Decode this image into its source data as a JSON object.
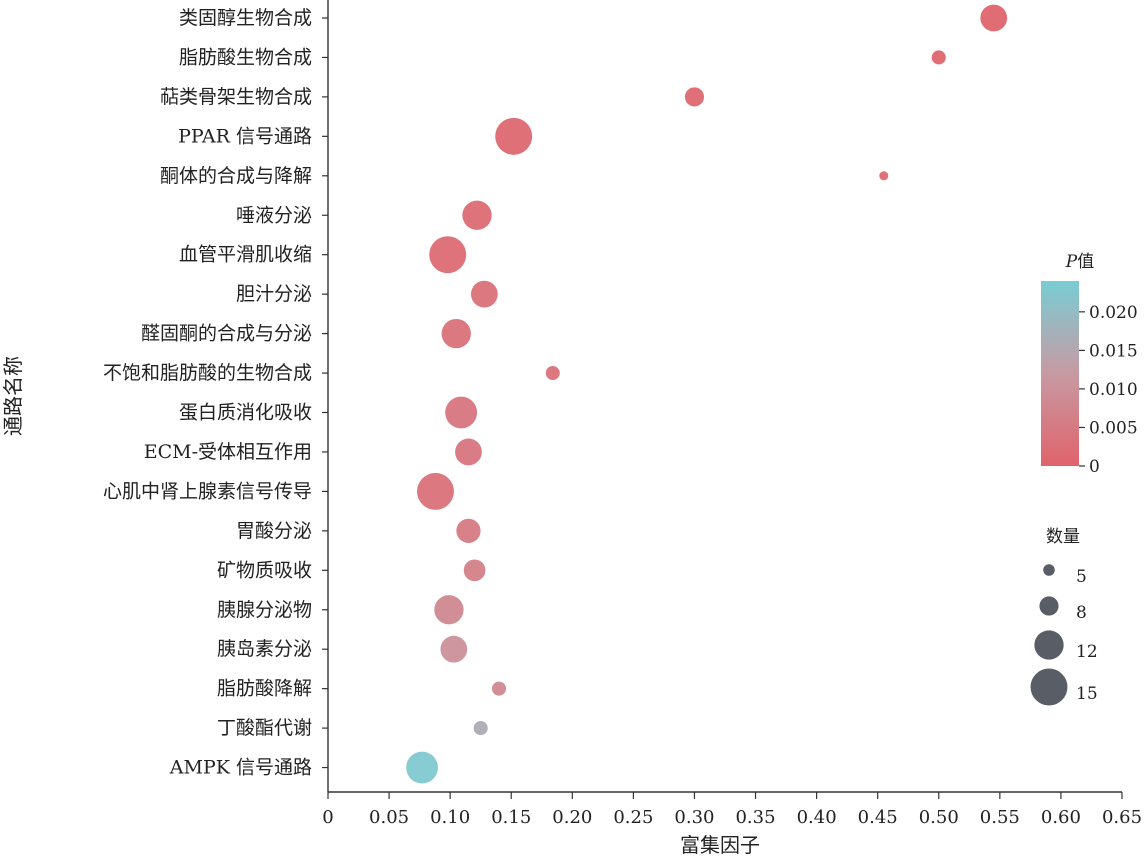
{
  "chart_data": {
    "type": "scatter",
    "xlabel": "富集因子",
    "ylabel": "通路名称",
    "xlim": [
      0,
      0.65
    ],
    "xticks": [
      "0",
      "0.05",
      "0.10",
      "0.15",
      "0.20",
      "0.25",
      "0.30",
      "0.35",
      "0.40",
      "0.45",
      "0.50",
      "0.55",
      "0.60",
      "0.65"
    ],
    "categories": [
      "类固醇生物合成",
      "脂肪酸生物合成",
      "萜类骨架生物合成",
      "PPAR 信号通路",
      "酮体的合成与降解",
      "唾液分泌",
      "血管平滑肌收缩",
      "胆汁分泌",
      "醛固酮的合成与分泌",
      "不饱和脂肪酸的生物合成",
      "蛋白质消化吸收",
      "ECM-受体相互作用",
      "心肌中肾上腺素信号传导",
      "胃酸分泌",
      "矿物质吸收",
      "胰腺分泌物",
      "胰岛素分泌",
      "脂肪酸降解",
      "丁酸酯代谢",
      "AMPK 信号通路"
    ],
    "points": [
      {
        "x": 0.545,
        "count": 11,
        "p": 0.0005
      },
      {
        "x": 0.5,
        "count": 6,
        "p": 0.0005
      },
      {
        "x": 0.3,
        "count": 8,
        "p": 0.001
      },
      {
        "x": 0.152,
        "count": 15,
        "p": 0.001
      },
      {
        "x": 0.455,
        "count": 4,
        "p": 0.001
      },
      {
        "x": 0.122,
        "count": 12,
        "p": 0.002
      },
      {
        "x": 0.098,
        "count": 15,
        "p": 0.002
      },
      {
        "x": 0.128,
        "count": 11,
        "p": 0.003
      },
      {
        "x": 0.105,
        "count": 12,
        "p": 0.003
      },
      {
        "x": 0.184,
        "count": 6,
        "p": 0.003
      },
      {
        "x": 0.109,
        "count": 13,
        "p": 0.004
      },
      {
        "x": 0.115,
        "count": 11,
        "p": 0.004
      },
      {
        "x": 0.088,
        "count": 15,
        "p": 0.003
      },
      {
        "x": 0.115,
        "count": 10,
        "p": 0.005
      },
      {
        "x": 0.12,
        "count": 9,
        "p": 0.006
      },
      {
        "x": 0.099,
        "count": 12,
        "p": 0.008
      },
      {
        "x": 0.103,
        "count": 11,
        "p": 0.01
      },
      {
        "x": 0.14,
        "count": 6,
        "p": 0.008
      },
      {
        "x": 0.125,
        "count": 6,
        "p": 0.016
      },
      {
        "x": 0.077,
        "count": 13,
        "p": 0.023
      }
    ],
    "color_legend": {
      "title_italic": "P",
      "title_rest": "值",
      "range": [
        0,
        0.024
      ],
      "ticks": [
        {
          "value": 0.02,
          "label": "0.020"
        },
        {
          "value": 0.015,
          "label": "0.015"
        },
        {
          "value": 0.01,
          "label": "0.010"
        },
        {
          "value": 0.005,
          "label": "0.005"
        },
        {
          "value": 0,
          "label": "0"
        }
      ],
      "low_color": "#e0636b",
      "mid_color": "#c79aa3",
      "high_color": "#79cdd4"
    },
    "size_legend": {
      "title": "数量",
      "entries": [
        {
          "count": 5,
          "label": "5"
        },
        {
          "count": 8,
          "label": "8"
        },
        {
          "count": 12,
          "label": "12"
        },
        {
          "count": 15,
          "label": "15"
        }
      ],
      "color": "#585d66"
    }
  }
}
